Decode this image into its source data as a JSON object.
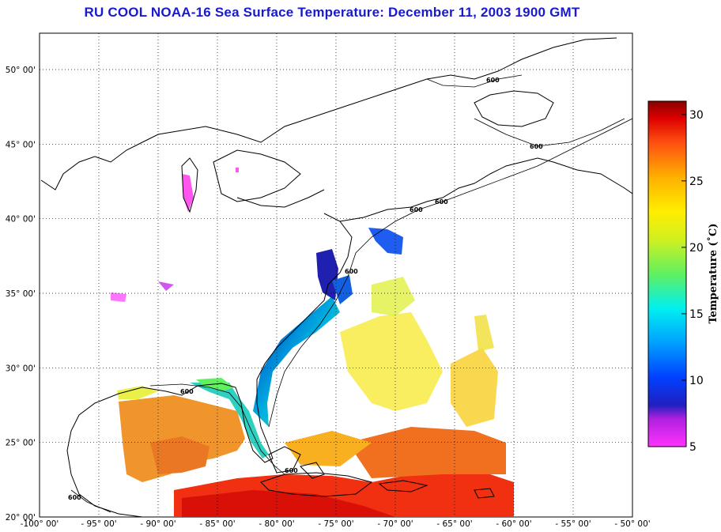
{
  "title": "RU COOL  NOAA-16  Sea Surface Temperature:  December 11, 2003 1900 GMT",
  "map": {
    "lon_ticks": [
      "-100° 00'",
      "- 95° 00'",
      "- 90° 00'",
      "- 85° 00'",
      "- 80° 00'",
      "- 75° 00'",
      "- 70° 00'",
      "- 65° 00'",
      "- 60° 00'",
      "- 55° 00'",
      "- 50° 00'"
    ],
    "lat_ticks": [
      "50° 00'",
      "45° 00'",
      "40° 00'",
      "35° 00'",
      "30° 00'",
      "25° 00'",
      "20° 00'"
    ],
    "contour_label": "600",
    "grid": "dotted"
  },
  "colorbar": {
    "title": "Temperature (˚C)",
    "ticks": [
      "30",
      "25",
      "20",
      "15",
      "10",
      "5"
    ],
    "min": 5,
    "max": 31
  }
}
